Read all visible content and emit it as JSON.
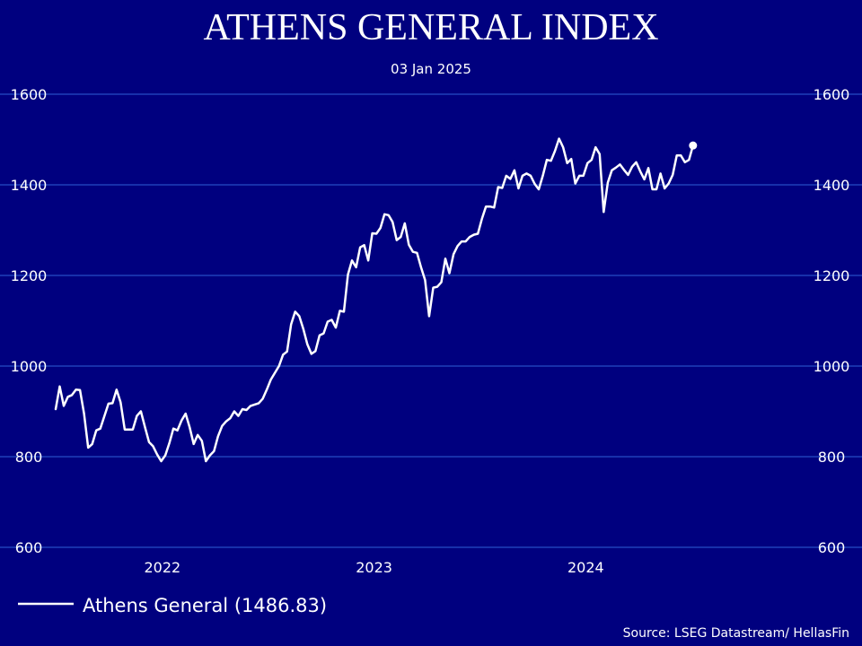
{
  "chart_data": {
    "type": "line",
    "title": "ATHENS GENERAL INDEX",
    "subtitle": "03 Jan 2025",
    "ylim": [
      600,
      1600
    ],
    "yticks": [
      600,
      800,
      1000,
      1200,
      1400,
      1600
    ],
    "xlim": [
      "2021-07-01",
      "2025-01-03"
    ],
    "xticks": [
      {
        "label": "2022",
        "date": "2022-01-01"
      },
      {
        "label": "2023",
        "date": "2023-01-01"
      },
      {
        "label": "2024",
        "date": "2024-01-01"
      }
    ],
    "grid": true,
    "legend_position": "bottom-left",
    "colors": {
      "background": "#00007f",
      "line": "#ffffff",
      "grid": "#2e5fd6"
    },
    "series": [
      {
        "name": "Athens General (1486.83)",
        "last_value": 1486.83,
        "points": [
          {
            "x": "2021-07-01",
            "y": 905
          },
          {
            "x": "2021-07-08",
            "y": 955
          },
          {
            "x": "2021-07-15",
            "y": 912
          },
          {
            "x": "2021-07-22",
            "y": 932
          },
          {
            "x": "2021-07-29",
            "y": 936
          },
          {
            "x": "2021-08-05",
            "y": 948
          },
          {
            "x": "2021-08-12",
            "y": 947
          },
          {
            "x": "2021-08-19",
            "y": 895
          },
          {
            "x": "2021-08-26",
            "y": 820
          },
          {
            "x": "2021-09-02",
            "y": 828
          },
          {
            "x": "2021-09-09",
            "y": 858
          },
          {
            "x": "2021-09-16",
            "y": 862
          },
          {
            "x": "2021-09-23",
            "y": 890
          },
          {
            "x": "2021-09-30",
            "y": 917
          },
          {
            "x": "2021-10-07",
            "y": 918
          },
          {
            "x": "2021-10-14",
            "y": 948
          },
          {
            "x": "2021-10-21",
            "y": 920
          },
          {
            "x": "2021-10-28",
            "y": 860
          },
          {
            "x": "2021-11-04",
            "y": 860
          },
          {
            "x": "2021-11-11",
            "y": 860
          },
          {
            "x": "2021-11-18",
            "y": 890
          },
          {
            "x": "2021-11-25",
            "y": 900
          },
          {
            "x": "2021-12-02",
            "y": 865
          },
          {
            "x": "2021-12-09",
            "y": 832
          },
          {
            "x": "2021-12-16",
            "y": 823
          },
          {
            "x": "2021-12-23",
            "y": 805
          },
          {
            "x": "2021-12-30",
            "y": 790
          },
          {
            "x": "2022-01-06",
            "y": 803
          },
          {
            "x": "2022-01-13",
            "y": 830
          },
          {
            "x": "2022-01-20",
            "y": 862
          },
          {
            "x": "2022-01-27",
            "y": 858
          },
          {
            "x": "2022-02-03",
            "y": 880
          },
          {
            "x": "2022-02-10",
            "y": 895
          },
          {
            "x": "2022-02-17",
            "y": 865
          },
          {
            "x": "2022-02-24",
            "y": 828
          },
          {
            "x": "2022-03-03",
            "y": 848
          },
          {
            "x": "2022-03-10",
            "y": 835
          },
          {
            "x": "2022-03-17",
            "y": 790
          },
          {
            "x": "2022-03-24",
            "y": 803
          },
          {
            "x": "2022-03-31",
            "y": 812
          },
          {
            "x": "2022-04-07",
            "y": 845
          },
          {
            "x": "2022-04-14",
            "y": 868
          },
          {
            "x": "2022-04-21",
            "y": 878
          },
          {
            "x": "2022-04-28",
            "y": 885
          },
          {
            "x": "2022-05-05",
            "y": 900
          },
          {
            "x": "2022-05-12",
            "y": 890
          },
          {
            "x": "2022-05-19",
            "y": 905
          },
          {
            "x": "2022-05-26",
            "y": 903
          },
          {
            "x": "2022-06-02",
            "y": 912
          },
          {
            "x": "2022-06-09",
            "y": 915
          },
          {
            "x": "2022-06-16",
            "y": 918
          },
          {
            "x": "2022-06-23",
            "y": 928
          },
          {
            "x": "2022-06-30",
            "y": 948
          },
          {
            "x": "2022-07-07",
            "y": 970
          },
          {
            "x": "2022-07-14",
            "y": 985
          },
          {
            "x": "2022-07-21",
            "y": 1000
          },
          {
            "x": "2022-07-28",
            "y": 1025
          },
          {
            "x": "2022-08-04",
            "y": 1032
          },
          {
            "x": "2022-08-11",
            "y": 1092
          },
          {
            "x": "2022-08-18",
            "y": 1120
          },
          {
            "x": "2022-08-25",
            "y": 1110
          },
          {
            "x": "2022-09-01",
            "y": 1082
          },
          {
            "x": "2022-09-08",
            "y": 1048
          },
          {
            "x": "2022-09-15",
            "y": 1027
          },
          {
            "x": "2022-09-22",
            "y": 1033
          },
          {
            "x": "2022-09-29",
            "y": 1068
          },
          {
            "x": "2022-10-06",
            "y": 1072
          },
          {
            "x": "2022-10-13",
            "y": 1098
          },
          {
            "x": "2022-10-20",
            "y": 1102
          },
          {
            "x": "2022-10-27",
            "y": 1085
          },
          {
            "x": "2022-11-03",
            "y": 1122
          },
          {
            "x": "2022-11-10",
            "y": 1120
          },
          {
            "x": "2022-11-17",
            "y": 1202
          },
          {
            "x": "2022-11-24",
            "y": 1233
          },
          {
            "x": "2022-12-01",
            "y": 1218
          },
          {
            "x": "2022-12-08",
            "y": 1262
          },
          {
            "x": "2022-12-15",
            "y": 1267
          },
          {
            "x": "2022-12-22",
            "y": 1233
          },
          {
            "x": "2022-12-29",
            "y": 1293
          },
          {
            "x": "2023-01-05",
            "y": 1292
          },
          {
            "x": "2023-01-12",
            "y": 1305
          },
          {
            "x": "2023-01-19",
            "y": 1335
          },
          {
            "x": "2023-01-26",
            "y": 1333
          },
          {
            "x": "2023-02-02",
            "y": 1318
          },
          {
            "x": "2023-02-09",
            "y": 1278
          },
          {
            "x": "2023-02-16",
            "y": 1285
          },
          {
            "x": "2023-02-23",
            "y": 1315
          },
          {
            "x": "2023-03-02",
            "y": 1268
          },
          {
            "x": "2023-03-09",
            "y": 1252
          },
          {
            "x": "2023-03-16",
            "y": 1250
          },
          {
            "x": "2023-03-23",
            "y": 1218
          },
          {
            "x": "2023-03-30",
            "y": 1190
          },
          {
            "x": "2023-04-06",
            "y": 1110
          },
          {
            "x": "2023-04-13",
            "y": 1173
          },
          {
            "x": "2023-04-20",
            "y": 1175
          },
          {
            "x": "2023-04-27",
            "y": 1185
          },
          {
            "x": "2023-05-04",
            "y": 1237
          },
          {
            "x": "2023-05-11",
            "y": 1205
          },
          {
            "x": "2023-05-18",
            "y": 1247
          },
          {
            "x": "2023-05-25",
            "y": 1265
          },
          {
            "x": "2023-06-01",
            "y": 1275
          },
          {
            "x": "2023-06-08",
            "y": 1275
          },
          {
            "x": "2023-06-15",
            "y": 1285
          },
          {
            "x": "2023-06-22",
            "y": 1290
          },
          {
            "x": "2023-06-29",
            "y": 1292
          },
          {
            "x": "2023-07-06",
            "y": 1325
          },
          {
            "x": "2023-07-13",
            "y": 1352
          },
          {
            "x": "2023-07-20",
            "y": 1352
          },
          {
            "x": "2023-07-27",
            "y": 1350
          },
          {
            "x": "2023-08-03",
            "y": 1395
          },
          {
            "x": "2023-08-10",
            "y": 1393
          },
          {
            "x": "2023-08-17",
            "y": 1420
          },
          {
            "x": "2023-08-24",
            "y": 1413
          },
          {
            "x": "2023-08-31",
            "y": 1432
          },
          {
            "x": "2023-09-07",
            "y": 1392
          },
          {
            "x": "2023-09-14",
            "y": 1420
          },
          {
            "x": "2023-09-21",
            "y": 1425
          },
          {
            "x": "2023-09-28",
            "y": 1420
          },
          {
            "x": "2023-10-05",
            "y": 1402
          },
          {
            "x": "2023-10-12",
            "y": 1390
          },
          {
            "x": "2023-10-19",
            "y": 1420
          },
          {
            "x": "2023-10-26",
            "y": 1455
          },
          {
            "x": "2023-11-02",
            "y": 1453
          },
          {
            "x": "2023-11-09",
            "y": 1475
          },
          {
            "x": "2023-11-16",
            "y": 1502
          },
          {
            "x": "2023-11-23",
            "y": 1483
          },
          {
            "x": "2023-11-30",
            "y": 1448
          },
          {
            "x": "2023-12-07",
            "y": 1457
          },
          {
            "x": "2023-12-14",
            "y": 1403
          },
          {
            "x": "2023-12-21",
            "y": 1420
          },
          {
            "x": "2023-12-28",
            "y": 1420
          },
          {
            "x": "2024-01-04",
            "y": 1448
          },
          {
            "x": "2024-01-11",
            "y": 1455
          },
          {
            "x": "2024-01-18",
            "y": 1483
          },
          {
            "x": "2024-01-25",
            "y": 1468
          },
          {
            "x": "2024-02-01",
            "y": 1340
          },
          {
            "x": "2024-02-08",
            "y": 1405
          },
          {
            "x": "2024-02-15",
            "y": 1432
          },
          {
            "x": "2024-02-22",
            "y": 1438
          },
          {
            "x": "2024-02-29",
            "y": 1445
          },
          {
            "x": "2024-03-07",
            "y": 1433
          },
          {
            "x": "2024-03-14",
            "y": 1422
          },
          {
            "x": "2024-03-21",
            "y": 1440
          },
          {
            "x": "2024-03-28",
            "y": 1450
          },
          {
            "x": "2024-04-04",
            "y": 1430
          },
          {
            "x": "2024-04-11",
            "y": 1412
          },
          {
            "x": "2024-04-18",
            "y": 1437
          },
          {
            "x": "2024-04-25",
            "y": 1390
          },
          {
            "x": "2024-05-02",
            "y": 1390
          },
          {
            "x": "2024-05-09",
            "y": 1425
          },
          {
            "x": "2024-05-16",
            "y": 1392
          },
          {
            "x": "2024-05-23",
            "y": 1403
          },
          {
            "x": "2024-05-30",
            "y": 1422
          },
          {
            "x": "2024-06-06",
            "y": 1465
          },
          {
            "x": "2024-06-13",
            "y": 1465
          },
          {
            "x": "2024-06-20",
            "y": 1450
          },
          {
            "x": "2024-06-27",
            "y": 1455
          },
          {
            "x": "2024-07-04",
            "y": 1486.83
          }
        ]
      }
    ]
  },
  "legend": {
    "label": "Athens General (1486.83)"
  },
  "source": "Source: LSEG Datastream/ HellasFin"
}
